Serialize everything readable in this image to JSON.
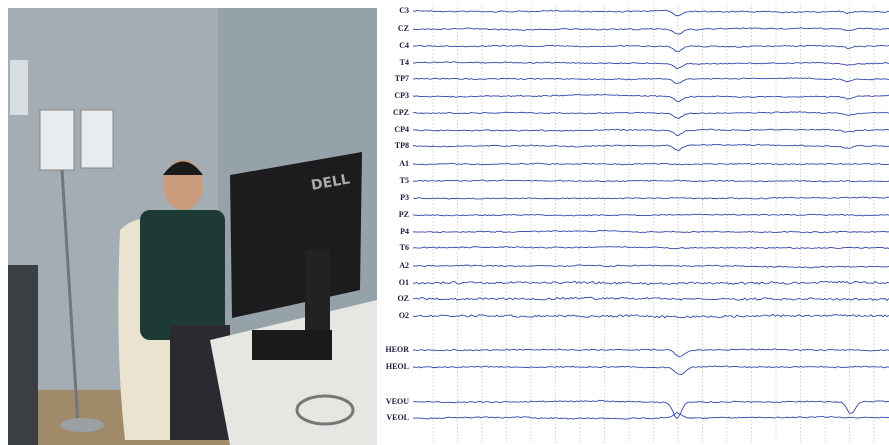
{
  "photo": {
    "monitor_brand": "DELL"
  },
  "eeg": {
    "channels": [
      "C3",
      "CZ",
      "C4",
      "T4",
      "TP7",
      "CP3",
      "CPZ",
      "CP4",
      "TP8",
      "A1",
      "T5",
      "P3",
      "PZ",
      "P4",
      "T6",
      "A2",
      "O1",
      "OZ",
      "O2",
      "HEOR",
      "HEOL",
      "VEOU",
      "VEOL"
    ]
  }
}
